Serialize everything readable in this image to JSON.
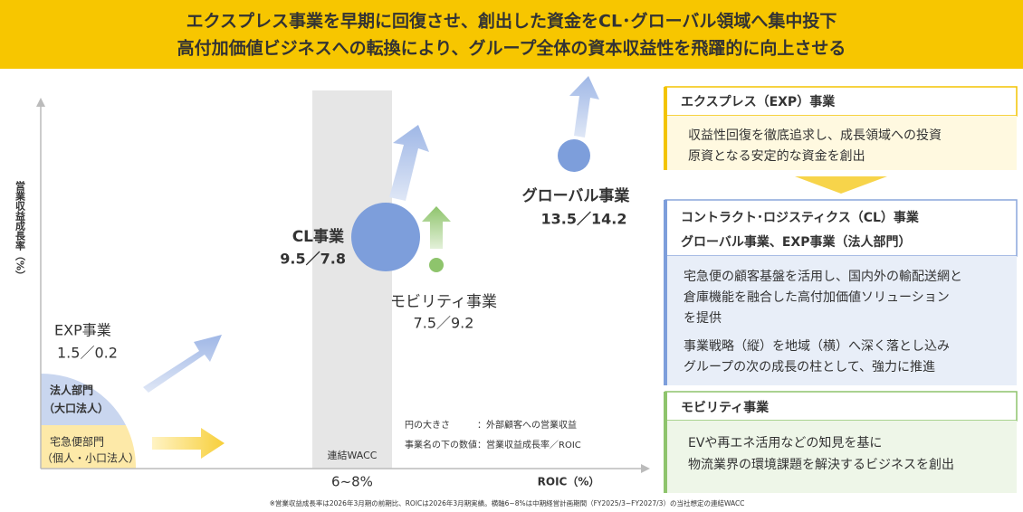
{
  "banner": {
    "lines": [
      "エクスプレス事業を早期に回復させ、創出した資金をCL･グローバル領域へ集中投下",
      "高付加価値ビジネスへの転換により、グループ全体の資本収益性を飛躍的に向上させる"
    ]
  },
  "diagram": {
    "y_axis_label": "営業収益成長率（%）",
    "x_axis_label": "ROIC（%）",
    "wacc": {
      "label": "連結WACC",
      "range": "6~8%"
    },
    "businesses": [
      {
        "name": "EXP事業",
        "figures": "1.5／0.2"
      },
      {
        "name": "CL事業",
        "figures": "9.5／7.8"
      },
      {
        "name": "モビリティ事業",
        "figures": "7.5／9.2"
      },
      {
        "name": "グローバル事業",
        "figures": "13.5／14.2"
      }
    ],
    "segments": [
      {
        "name": "法人部門",
        "sub": "（大口法人）"
      },
      {
        "name": "宅急便部門",
        "sub": "（個人・小口法人）"
      }
    ],
    "notes": [
      "円の大きさ　　　：外部顧客への営業収益",
      "事業名の下の数値：営業収益成長率／ROIC"
    ]
  },
  "footnote": "※営業収益成長率は2026年3月期の前期比、ROICは2026年3月期実績。横軸6~8%は中期経営計画期間（FY2025/3~FY2027/3）の当社想定の連結WACC",
  "panels": [
    {
      "title_lines": [
        "エクスプレス（EXP）事業"
      ],
      "body_lines": [
        "収益性回復を徹底追求し、成長領域への投資",
        "原資となる安定的な資金を創出"
      ]
    },
    {
      "title_lines": [
        "コントラクト･ロジスティクス（CL）事業",
        "グローバル事業、EXP事業（法人部門）"
      ],
      "body_lines": [
        "宅急便の顧客基盤を活用し、国内外の輸配送網と",
        "倉庫機能を融合した高付加価値ソリューション",
        "を提供",
        "事業戦略（縦）を地域（横）へ深く落とし込み",
        "グループの次の成長の柱として、強力に推進"
      ]
    },
    {
      "title_lines": [
        "モビリティ事業"
      ],
      "body_lines": [
        "EVや再エネ活用などの知見を基に",
        "物流業界の環境課題を解決するビジネスを創出"
      ]
    }
  ]
}
